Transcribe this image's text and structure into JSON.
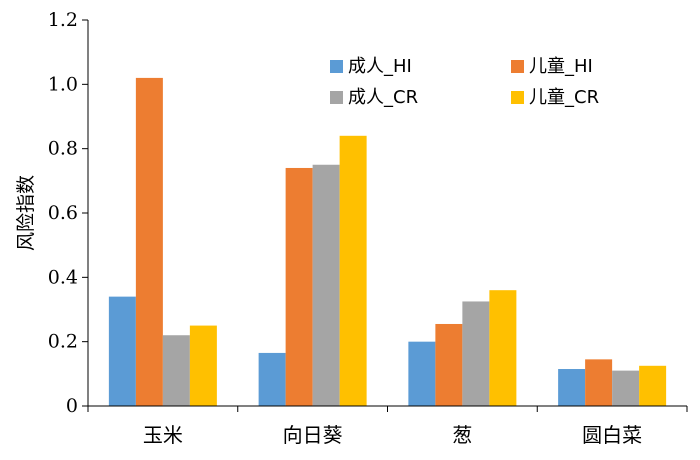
{
  "chart_data": {
    "type": "bar",
    "title": "",
    "xlabel": "",
    "ylabel": "风险指数",
    "ylim": [
      0,
      1.2
    ],
    "yticks": [
      "0",
      "0.2",
      "0.4",
      "0.6",
      "0.8",
      "1.0",
      "1.2"
    ],
    "categories": [
      "玉米",
      "向日葵",
      "葱",
      "圆白菜"
    ],
    "series": [
      {
        "name": "成人_HI",
        "color": "#5B9BD5",
        "values": [
          0.34,
          0.165,
          0.2,
          0.115
        ]
      },
      {
        "name": "儿童_HI",
        "color": "#ED7D31",
        "values": [
          1.02,
          0.74,
          0.255,
          0.145
        ]
      },
      {
        "name": "成人_CR",
        "color": "#A5A5A5",
        "values": [
          0.22,
          0.75,
          0.325,
          0.11
        ]
      },
      {
        "name": "儿童_CR",
        "color": "#FFC000",
        "values": [
          0.25,
          0.84,
          0.36,
          0.125
        ]
      }
    ],
    "legend": "top-right",
    "grid": false
  }
}
